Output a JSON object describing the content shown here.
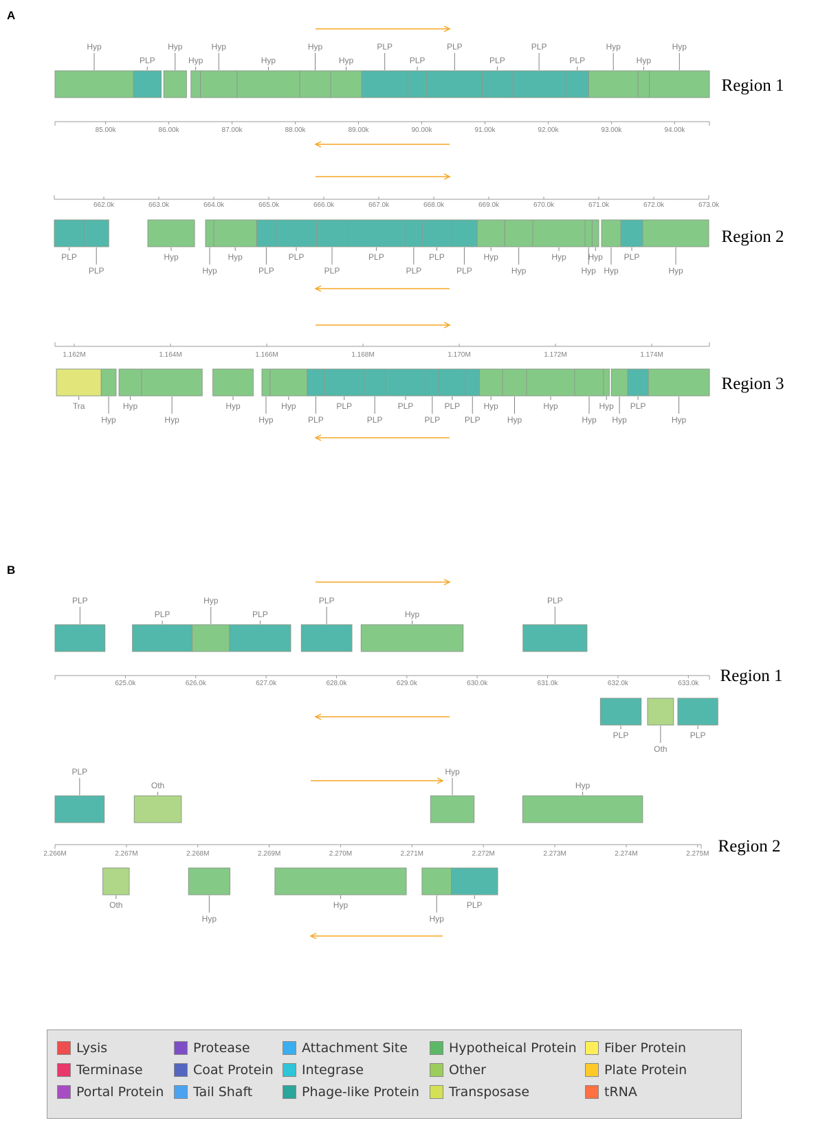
{
  "colors": {
    "PLP": "#52b8ac",
    "Hyp": "#85c987",
    "Oth": "#b0d787",
    "Tra": "#e1e57a",
    "arrow": "#f5a623",
    "axis": "#9a9a9a",
    "label": "#808080"
  },
  "panels": [
    {
      "letter": "A",
      "regions": [
        {
          "name": "Region 1",
          "axis_min": 84200,
          "axis_max": 94550,
          "ticks": [
            {
              "v": 85000,
              "t": "85.00k"
            },
            {
              "v": 86000,
              "t": "86.00k"
            },
            {
              "v": 87000,
              "t": "87.00k"
            },
            {
              "v": 88000,
              "t": "88.00k"
            },
            {
              "v": 89000,
              "t": "89.00k"
            },
            {
              "v": 90000,
              "t": "90.00k"
            },
            {
              "v": 91000,
              "t": "91.00k"
            },
            {
              "v": 92000,
              "t": "92.00k"
            },
            {
              "v": 93000,
              "t": "93.00k"
            },
            {
              "v": 94000,
              "t": "94.00k"
            }
          ],
          "genes": [
            {
              "s": 84200,
              "e": 85440,
              "type": "Hyp",
              "strand": "+",
              "lv": 1
            },
            {
              "s": 85440,
              "e": 85880,
              "type": "PLP",
              "strand": "+",
              "lv": 0
            },
            {
              "s": 85920,
              "e": 86280,
              "type": "Hyp",
              "strand": "+",
              "lv": 1
            },
            {
              "s": 86350,
              "e": 86500,
              "type": "Hyp",
              "strand": "+",
              "lv": 0
            },
            {
              "s": 86500,
              "e": 87080,
              "type": "Hyp",
              "strand": "+",
              "lv": 1
            },
            {
              "s": 87080,
              "e": 88070,
              "type": "Hyp",
              "strand": "+",
              "lv": 0
            },
            {
              "s": 88070,
              "e": 88560,
              "type": "Hyp",
              "strand": "+",
              "lv": 1
            },
            {
              "s": 88560,
              "e": 89050,
              "type": "Hyp",
              "strand": "+",
              "lv": 0
            },
            {
              "s": 89050,
              "e": 89780,
              "type": "PLP",
              "strand": "+",
              "lv": 1
            },
            {
              "s": 89780,
              "e": 90080,
              "type": "PLP",
              "strand": "+",
              "lv": 0
            },
            {
              "s": 90080,
              "e": 90960,
              "type": "PLP",
              "strand": "+",
              "lv": 1
            },
            {
              "s": 90960,
              "e": 91430,
              "type": "PLP",
              "strand": "+",
              "lv": 0
            },
            {
              "s": 91430,
              "e": 92280,
              "type": "PLP",
              "strand": "+",
              "lv": 1
            },
            {
              "s": 92280,
              "e": 92640,
              "type": "PLP",
              "strand": "+",
              "lv": 0
            },
            {
              "s": 92640,
              "e": 93420,
              "type": "Hyp",
              "strand": "+",
              "lv": 1
            },
            {
              "s": 93420,
              "e": 93600,
              "type": "Hyp",
              "strand": "+",
              "lv": 0
            },
            {
              "s": 93600,
              "e": 94550,
              "type": "Hyp",
              "strand": "+",
              "lv": 1
            }
          ]
        },
        {
          "name": "Region 2",
          "axis_min": 661100,
          "axis_max": 673000,
          "ticks": [
            {
              "v": 662000,
              "t": "662.0k"
            },
            {
              "v": 663000,
              "t": "663.0k"
            },
            {
              "v": 664000,
              "t": "664.0k"
            },
            {
              "v": 665000,
              "t": "665.0k"
            },
            {
              "v": 666000,
              "t": "666.0k"
            },
            {
              "v": 667000,
              "t": "667.0k"
            },
            {
              "v": 668000,
              "t": "668.0k"
            },
            {
              "v": 669000,
              "t": "669.0k"
            },
            {
              "v": 670000,
              "t": "670.0k"
            },
            {
              "v": 671000,
              "t": "671.0k"
            },
            {
              "v": 672000,
              "t": "672.0k"
            },
            {
              "v": 673000,
              "t": "673.0k"
            }
          ],
          "genes": [
            {
              "s": 661100,
              "e": 661640,
              "type": "PLP",
              "strand": "-",
              "lv": 0
            },
            {
              "s": 661640,
              "e": 662090,
              "type": "PLP",
              "strand": "-",
              "lv": 1
            },
            {
              "s": 662800,
              "e": 663650,
              "type": "Hyp",
              "strand": "-",
              "lv": 0
            },
            {
              "s": 663850,
              "e": 664000,
              "type": "Hyp",
              "strand": "-",
              "lv": 1
            },
            {
              "s": 664000,
              "e": 664780,
              "type": "Hyp",
              "strand": "-",
              "lv": 0
            },
            {
              "s": 664780,
              "e": 665130,
              "type": "PLP",
              "strand": "-",
              "lv": 1
            },
            {
              "s": 665130,
              "e": 665870,
              "type": "PLP",
              "strand": "-",
              "lv": 0
            },
            {
              "s": 665870,
              "e": 666430,
              "type": "PLP",
              "strand": "-",
              "lv": 1
            },
            {
              "s": 666430,
              "e": 667480,
              "type": "PLP",
              "strand": "-",
              "lv": 0
            },
            {
              "s": 667480,
              "e": 667790,
              "type": "PLP",
              "strand": "-",
              "lv": 1
            },
            {
              "s": 667790,
              "e": 668320,
              "type": "PLP",
              "strand": "-",
              "lv": 0
            },
            {
              "s": 668320,
              "e": 668790,
              "type": "PLP",
              "strand": "-",
              "lv": 1
            },
            {
              "s": 668790,
              "e": 669290,
              "type": "Hyp",
              "strand": "-",
              "lv": 0
            },
            {
              "s": 669290,
              "e": 669800,
              "type": "Hyp",
              "strand": "-",
              "lv": 1
            },
            {
              "s": 669800,
              "e": 670750,
              "type": "Hyp",
              "strand": "-",
              "lv": 0
            },
            {
              "s": 670750,
              "e": 670880,
              "type": "Hyp",
              "strand": "-",
              "lv": 1
            },
            {
              "s": 670880,
              "e": 671000,
              "type": "Hyp",
              "strand": "-",
              "lv": 0
            },
            {
              "s": 671050,
              "e": 671400,
              "type": "Hyp",
              "strand": "-",
              "lv": 1
            },
            {
              "s": 671400,
              "e": 671800,
              "type": "PLP",
              "strand": "-",
              "lv": 0
            },
            {
              "s": 671800,
              "e": 673000,
              "type": "Hyp",
              "strand": "-",
              "lv": 1
            }
          ]
        },
        {
          "name": "Region 3",
          "axis_min": 1161600,
          "axis_max": 1175200,
          "ticks": [
            {
              "v": 1162000,
              "t": "1.162M"
            },
            {
              "v": 1164000,
              "t": "1.164M"
            },
            {
              "v": 1166000,
              "t": "1.166M"
            },
            {
              "v": 1168000,
              "t": "1.168M"
            },
            {
              "v": 1170000,
              "t": "1.170M"
            },
            {
              "v": 1172000,
              "t": "1.172M"
            },
            {
              "v": 1174000,
              "t": "1.174M"
            }
          ],
          "genes": [
            {
              "s": 1161630,
              "e": 1162560,
              "type": "Tra",
              "strand": "-",
              "lv": 0
            },
            {
              "s": 1162560,
              "e": 1162870,
              "type": "Hyp",
              "strand": "-",
              "lv": 1
            },
            {
              "s": 1162930,
              "e": 1163400,
              "type": "Hyp",
              "strand": "-",
              "lv": 0
            },
            {
              "s": 1163400,
              "e": 1164660,
              "type": "Hyp",
              "strand": "-",
              "lv": 1
            },
            {
              "s": 1164880,
              "e": 1165720,
              "type": "Hyp",
              "strand": "-",
              "lv": 0
            },
            {
              "s": 1165900,
              "e": 1166070,
              "type": "Hyp",
              "strand": "-",
              "lv": 1
            },
            {
              "s": 1166070,
              "e": 1166840,
              "type": "Hyp",
              "strand": "-",
              "lv": 0
            },
            {
              "s": 1166840,
              "e": 1167200,
              "type": "PLP",
              "strand": "-",
              "lv": 1
            },
            {
              "s": 1167200,
              "e": 1168020,
              "type": "PLP",
              "strand": "-",
              "lv": 0
            },
            {
              "s": 1168020,
              "e": 1168470,
              "type": "PLP",
              "strand": "-",
              "lv": 1
            },
            {
              "s": 1168470,
              "e": 1169300,
              "type": "PLP",
              "strand": "-",
              "lv": 0
            },
            {
              "s": 1169300,
              "e": 1169580,
              "type": "PLP",
              "strand": "-",
              "lv": 1
            },
            {
              "s": 1169580,
              "e": 1170130,
              "type": "PLP",
              "strand": "-",
              "lv": 0
            },
            {
              "s": 1170130,
              "e": 1170420,
              "type": "PLP",
              "strand": "-",
              "lv": 1
            },
            {
              "s": 1170420,
              "e": 1170900,
              "type": "Hyp",
              "strand": "-",
              "lv": 0
            },
            {
              "s": 1170900,
              "e": 1171400,
              "type": "Hyp",
              "strand": "-",
              "lv": 1
            },
            {
              "s": 1171400,
              "e": 1172400,
              "type": "Hyp",
              "strand": "-",
              "lv": 0
            },
            {
              "s": 1172400,
              "e": 1173000,
              "type": "Hyp",
              "strand": "-",
              "lv": 1
            },
            {
              "s": 1173000,
              "e": 1173120,
              "type": "Hyp",
              "strand": "-",
              "lv": 0
            },
            {
              "s": 1173160,
              "e": 1173500,
              "type": "Hyp",
              "strand": "-",
              "lv": 1
            },
            {
              "s": 1173500,
              "e": 1173930,
              "type": "PLP",
              "strand": "-",
              "lv": 0
            },
            {
              "s": 1173930,
              "e": 1175200,
              "type": "Hyp",
              "strand": "-",
              "lv": 1
            }
          ]
        }
      ]
    },
    {
      "letter": "B",
      "regions": [
        {
          "name": "Region 1",
          "axis_min": 624000,
          "axis_max": 633300,
          "ticks": [
            {
              "v": 625000,
              "t": "625.0k"
            },
            {
              "v": 626000,
              "t": "626.0k"
            },
            {
              "v": 627000,
              "t": "627.0k"
            },
            {
              "v": 628000,
              "t": "628.0k"
            },
            {
              "v": 629000,
              "t": "629.0k"
            },
            {
              "v": 630000,
              "t": "630.0k"
            },
            {
              "v": 631000,
              "t": "631.0k"
            },
            {
              "v": 632000,
              "t": "632.0k"
            },
            {
              "v": 633000,
              "t": "633.0k"
            }
          ],
          "genes": [
            {
              "s": 624000,
              "e": 624710,
              "type": "PLP",
              "strand": "+",
              "lv": 1
            },
            {
              "s": 625100,
              "e": 625950,
              "type": "PLP",
              "strand": "+",
              "lv": 0
            },
            {
              "s": 625950,
              "e": 626480,
              "type": "Hyp",
              "strand": "+",
              "lv": 1
            },
            {
              "s": 626480,
              "e": 627350,
              "type": "PLP",
              "strand": "+",
              "lv": 0
            },
            {
              "s": 627500,
              "e": 628220,
              "type": "PLP",
              "strand": "+",
              "lv": 1
            },
            {
              "s": 628350,
              "e": 629800,
              "type": "Hyp",
              "strand": "+",
              "lv": 0
            },
            {
              "s": 630650,
              "e": 631560,
              "type": "PLP",
              "strand": "+",
              "lv": 1
            },
            {
              "s": 631750,
              "e": 632330,
              "type": "PLP",
              "strand": "-",
              "lv": 0
            },
            {
              "s": 632420,
              "e": 632790,
              "type": "Oth",
              "strand": "-",
              "lv": 1
            },
            {
              "s": 632850,
              "e": 633420,
              "type": "PLP",
              "strand": "-",
              "lv": 0
            }
          ]
        },
        {
          "name": "Region 2",
          "axis_min": 2266000,
          "axis_max": 2275050,
          "ticks": [
            {
              "v": 2266000,
              "t": "2.266M"
            },
            {
              "v": 2267000,
              "t": "2.267M"
            },
            {
              "v": 2268000,
              "t": "2.268M"
            },
            {
              "v": 2269000,
              "t": "2.269M"
            },
            {
              "v": 2270000,
              "t": "2.270M"
            },
            {
              "v": 2271000,
              "t": "2.271M"
            },
            {
              "v": 2272000,
              "t": "2.272M"
            },
            {
              "v": 2273000,
              "t": "2.273M"
            },
            {
              "v": 2274000,
              "t": "2.274M"
            },
            {
              "v": 2275000,
              "t": "2.275M"
            }
          ],
          "genes": [
            {
              "s": 2266000,
              "e": 2266690,
              "type": "PLP",
              "strand": "+",
              "lv": 1
            },
            {
              "s": 2267110,
              "e": 2267770,
              "type": "Oth",
              "strand": "+",
              "lv": 0
            },
            {
              "s": 2271260,
              "e": 2271870,
              "type": "Hyp",
              "strand": "+",
              "lv": 1
            },
            {
              "s": 2272550,
              "e": 2274230,
              "type": "Hyp",
              "strand": "+",
              "lv": 0
            },
            {
              "s": 2266670,
              "e": 2267040,
              "type": "Oth",
              "strand": "-",
              "lv": 0
            },
            {
              "s": 2267870,
              "e": 2268450,
              "type": "Hyp",
              "strand": "-",
              "lv": 1
            },
            {
              "s": 2269080,
              "e": 2270920,
              "type": "Hyp",
              "strand": "-",
              "lv": 0
            },
            {
              "s": 2271140,
              "e": 2271550,
              "type": "Hyp",
              "strand": "-",
              "lv": 1
            },
            {
              "s": 2271550,
              "e": 2272200,
              "type": "PLP",
              "strand": "-",
              "lv": 0
            }
          ]
        }
      ]
    }
  ],
  "legend": [
    {
      "label": "Lysis",
      "color": "#ef4e4e"
    },
    {
      "label": "Terminase",
      "color": "#e8386c"
    },
    {
      "label": "Portal Protein",
      "color": "#a84cc4"
    },
    {
      "label": "Protease",
      "color": "#7e4fc4"
    },
    {
      "label": "Coat Protein",
      "color": "#5566c0"
    },
    {
      "label": "Tail Shaft",
      "color": "#4aa3f0"
    },
    {
      "label": "Attachment Site",
      "color": "#3aaef0"
    },
    {
      "label": "Integrase",
      "color": "#2fc4d8"
    },
    {
      "label": "Phage-like Protein",
      "color": "#2aa69a"
    },
    {
      "label": "Hypotheical Protein",
      "color": "#5cb866"
    },
    {
      "label": "Other",
      "color": "#9ccc5c"
    },
    {
      "label": "Transposase",
      "color": "#d4e157"
    },
    {
      "label": "Fiber Protein",
      "color": "#ffee58"
    },
    {
      "label": "Plate Protein",
      "color": "#ffca28"
    },
    {
      "label": "tRNA",
      "color": "#ff7043"
    }
  ]
}
